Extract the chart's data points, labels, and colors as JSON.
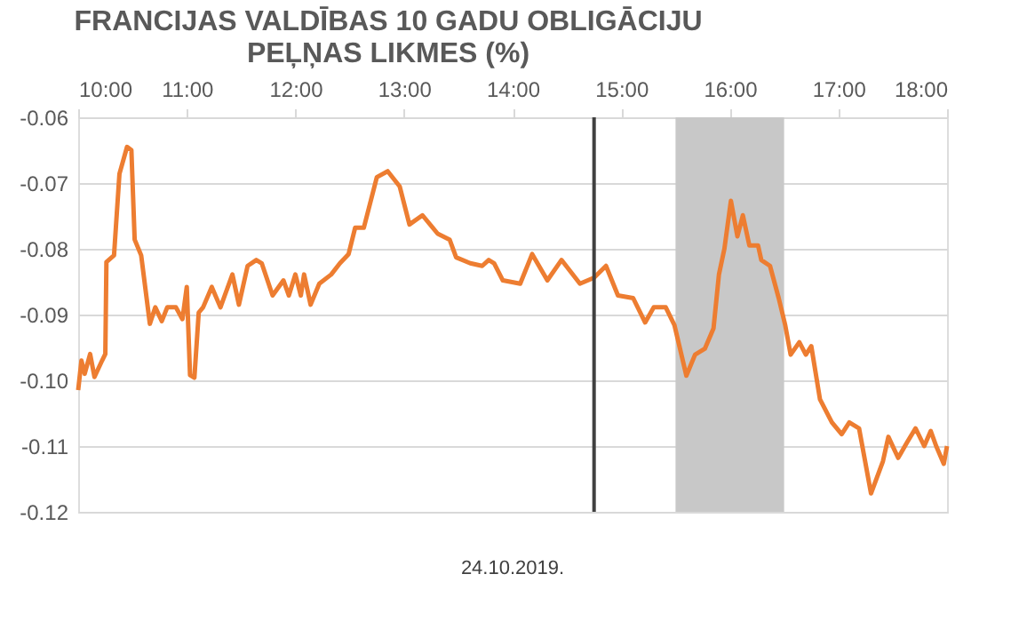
{
  "chart_data": {
    "type": "line",
    "title": "FRANCIJAS VALDĪBAS 10 GADU OBLIGĀCIJU PEĻŅAS LIKMES (%)",
    "xlabel": "24.10.2019.",
    "x": [
      10.0,
      10.03,
      10.06,
      10.11,
      10.15,
      10.22,
      10.25,
      10.26,
      10.33,
      10.38,
      10.45,
      10.49,
      10.52,
      10.58,
      10.66,
      10.71,
      10.77,
      10.82,
      10.9,
      10.96,
      11.0,
      11.03,
      11.07,
      11.11,
      11.15,
      11.23,
      11.31,
      11.42,
      11.48,
      11.56,
      11.64,
      11.69,
      11.79,
      11.89,
      11.94,
      12.0,
      12.05,
      12.08,
      12.14,
      12.22,
      12.33,
      12.41,
      12.49,
      12.55,
      12.63,
      12.75,
      12.85,
      12.96,
      13.05,
      13.17,
      13.31,
      13.42,
      13.48,
      13.61,
      13.72,
      13.78,
      13.83,
      13.91,
      14.07,
      14.18,
      14.32,
      14.45,
      14.62,
      14.75,
      14.86,
      14.97,
      15.11,
      15.22,
      15.3,
      15.41,
      15.49,
      15.6,
      15.68,
      15.77,
      15.85,
      15.9,
      15.95,
      16.01,
      16.07,
      16.12,
      16.18,
      16.26,
      16.29,
      16.37,
      16.45,
      16.51,
      16.56,
      16.64,
      16.7,
      16.75,
      16.83,
      16.94,
      17.03,
      17.1,
      17.19,
      17.3,
      17.41,
      17.46,
      17.55,
      17.63,
      17.71,
      17.79,
      17.85,
      17.9,
      17.97,
      18.0
    ],
    "series": [
      {
        "color": "#ed7d31",
        "values": [
          -0.1015,
          -0.097,
          -0.099,
          -0.096,
          -0.0995,
          -0.097,
          -0.096,
          -0.082,
          -0.081,
          -0.0686,
          -0.0645,
          -0.065,
          -0.0786,
          -0.081,
          -0.0914,
          -0.0889,
          -0.091,
          -0.0889,
          -0.0889,
          -0.0907,
          -0.0858,
          -0.0992,
          -0.0996,
          -0.0897,
          -0.0889,
          -0.0858,
          -0.0889,
          -0.0839,
          -0.0885,
          -0.0826,
          -0.0817,
          -0.0822,
          -0.0871,
          -0.0848,
          -0.0871,
          -0.0839,
          -0.0871,
          -0.0839,
          -0.0885,
          -0.0853,
          -0.0839,
          -0.0822,
          -0.0808,
          -0.0768,
          -0.0768,
          -0.0691,
          -0.0682,
          -0.0705,
          -0.0763,
          -0.0749,
          -0.0777,
          -0.0786,
          -0.0813,
          -0.0822,
          -0.0826,
          -0.0817,
          -0.0822,
          -0.0848,
          -0.0853,
          -0.0808,
          -0.0848,
          -0.0817,
          -0.0853,
          -0.0844,
          -0.0826,
          -0.0871,
          -0.0875,
          -0.0912,
          -0.0889,
          -0.0889,
          -0.0916,
          -0.0993,
          -0.0961,
          -0.0952,
          -0.0921,
          -0.0839,
          -0.08,
          -0.0727,
          -0.0781,
          -0.0749,
          -0.0795,
          -0.0795,
          -0.0817,
          -0.0826,
          -0.0875,
          -0.0916,
          -0.0961,
          -0.0942,
          -0.0961,
          -0.0948,
          -0.1029,
          -0.1064,
          -0.1082,
          -0.1064,
          -0.1073,
          -0.1172,
          -0.1123,
          -0.1086,
          -0.1118,
          -0.1095,
          -0.1073,
          -0.11,
          -0.1077,
          -0.11,
          -0.1127,
          -0.11
        ]
      }
    ],
    "xlim": [
      10,
      18
    ],
    "xticks": [
      {
        "value": 10,
        "label": "10:00"
      },
      {
        "value": 11,
        "label": "11:00"
      },
      {
        "value": 12,
        "label": "12:00"
      },
      {
        "value": 13,
        "label": "13:00"
      },
      {
        "value": 14,
        "label": "14:00"
      },
      {
        "value": 15,
        "label": "15:00"
      },
      {
        "value": 16,
        "label": "16:00"
      },
      {
        "value": 17,
        "label": "17:00"
      },
      {
        "value": 18,
        "label": "18:00"
      }
    ],
    "ylim": [
      -0.12,
      -0.06
    ],
    "yticks": [
      {
        "value": -0.12,
        "label": "-0.12"
      },
      {
        "value": -0.11,
        "label": "-0.11"
      },
      {
        "value": -0.1,
        "label": "-0.10"
      },
      {
        "value": -0.09,
        "label": "-0.09"
      },
      {
        "value": -0.08,
        "label": "-0.08"
      },
      {
        "value": -0.07,
        "label": "-0.07"
      },
      {
        "value": -0.06,
        "label": "-0.06"
      }
    ],
    "ref_lines": [
      {
        "axis": "x",
        "value": 14.75,
        "color": "#404040"
      }
    ],
    "bands": [
      {
        "axis": "x",
        "from": 15.5,
        "to": 16.5,
        "color": "#c8c8c8"
      }
    ],
    "grid": "y",
    "marker": "none",
    "line_style": "solid"
  }
}
